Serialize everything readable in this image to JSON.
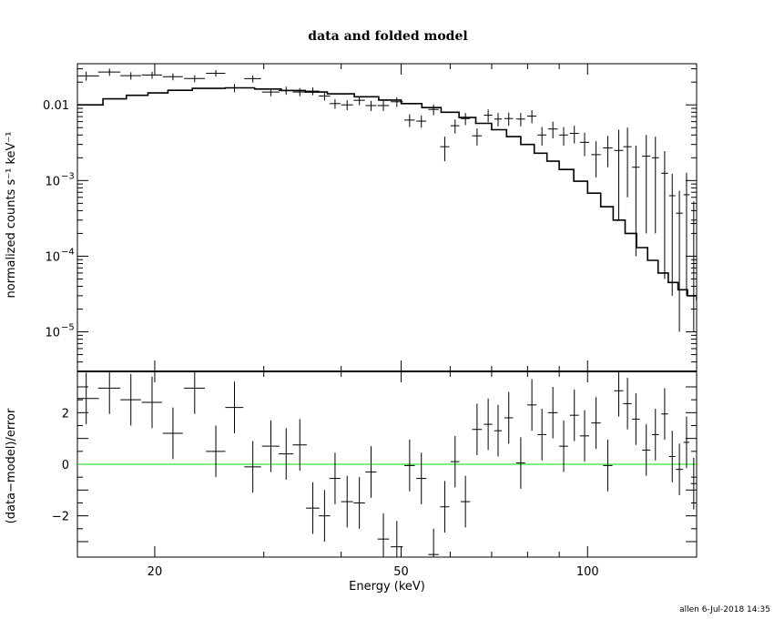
{
  "chart_data": [
    {
      "type": "scatter",
      "title": "data and folded model",
      "xlabel": "Energy (keV)",
      "ylabel": "normalized counts s⁻¹ keV⁻¹",
      "xscale": "log",
      "yscale": "log",
      "xlim": [
        15,
        150
      ],
      "ylim": [
        3e-06,
        0.035
      ],
      "x_ticks": [
        {
          "value": 20,
          "label": "20"
        },
        {
          "value": 50,
          "label": "50"
        },
        {
          "value": 100,
          "label": "100"
        }
      ],
      "y_ticks": [
        {
          "value": 0.01,
          "label": "0.01"
        },
        {
          "value": 0.001,
          "base": "10",
          "exp": "−3"
        },
        {
          "value": 0.0001,
          "base": "10",
          "exp": "−4"
        },
        {
          "value": 1e-05,
          "base": "10",
          "exp": "−5"
        }
      ],
      "grid": false,
      "series": [
        {
          "kind": "data",
          "color": "#000000",
          "points": [
            [
              15.5,
              0.0242,
              0.75,
              0.0033
            ],
            [
              16.9,
              0.0272,
              0.7,
              0.003
            ],
            [
              18.3,
              0.0243,
              0.7,
              0.0027
            ],
            [
              19.8,
              0.0248,
              0.75,
              0.0026
            ],
            [
              21.4,
              0.0236,
              0.8,
              0.0025
            ],
            [
              23.2,
              0.0223,
              0.9,
              0.0024
            ],
            [
              25.1,
              0.0262,
              0.9,
              0.0026
            ],
            [
              26.9,
              0.0168,
              0.9,
              0.0021
            ],
            [
              28.8,
              0.0222,
              0.9,
              0.0024
            ],
            [
              30.8,
              0.0148,
              1.0,
              0.0018
            ],
            [
              32.6,
              0.0155,
              0.9,
              0.0019
            ],
            [
              34.3,
              0.0148,
              0.9,
              0.0018
            ],
            [
              36.0,
              0.0152,
              0.9,
              0.0018
            ],
            [
              37.6,
              0.0131,
              0.8,
              0.0017
            ],
            [
              39.1,
              0.0104,
              0.8,
              0.0015
            ],
            [
              40.9,
              0.01,
              0.9,
              0.0015
            ],
            [
              42.8,
              0.0115,
              0.9,
              0.0016
            ],
            [
              44.7,
              0.0098,
              0.9,
              0.0015
            ],
            [
              46.8,
              0.0098,
              1.0,
              0.0015
            ],
            [
              49.2,
              0.011,
              1.1,
              0.0016
            ],
            [
              51.6,
              0.0063,
              1.0,
              0.0012
            ],
            [
              53.9,
              0.0061,
              1.0,
              0.0011
            ],
            [
              56.4,
              0.0087,
              1.1,
              0.0014
            ],
            [
              58.8,
              0.0028,
              1.0,
              0.001
            ],
            [
              61.1,
              0.0053,
              1.0,
              0.0011
            ],
            [
              63.5,
              0.0066,
              1.1,
              0.0012
            ],
            [
              66.3,
              0.0039,
              1.2,
              0.001
            ],
            [
              69.1,
              0.0073,
              1.1,
              0.0014
            ],
            [
              71.7,
              0.0065,
              1.0,
              0.0013
            ],
            [
              74.6,
              0.0066,
              1.2,
              0.0013
            ],
            [
              78.0,
              0.0065,
              1.3,
              0.0013
            ],
            [
              81.3,
              0.0071,
              1.4,
              0.0014
            ],
            [
              84.4,
              0.004,
              1.4,
              0.0011
            ],
            [
              87.9,
              0.0048,
              1.6,
              0.0012
            ],
            [
              91.5,
              0.004,
              1.5,
              0.0011
            ],
            [
              95.2,
              0.0042,
              1.6,
              0.0011
            ],
            [
              98.9,
              0.0032,
              1.7,
              0.0011
            ],
            [
              103.2,
              0.0022,
              1.8,
              0.0011
            ],
            [
              107.8,
              0.0027,
              1.9,
              0.0012
            ],
            [
              112.3,
              0.0025,
              1.9,
              0.0022
            ],
            [
              116.0,
              0.0028,
              1.8,
              0.0022
            ],
            [
              119.7,
              0.0015,
              1.7,
              0.0014
            ],
            [
              124.4,
              0.0021,
              1.9,
              0.0019
            ],
            [
              128.7,
              0.002,
              1.7,
              0.0018
            ],
            [
              133.2,
              0.00125,
              1.7,
              0.0012
            ],
            [
              137.0,
              0.00063,
              1.6,
              0.0006
            ],
            [
              140.7,
              0.00037,
              1.8,
              0.00036
            ],
            [
              144.5,
              0.00065,
              1.6,
              0.00062
            ],
            [
              148.4,
              0.00027,
              1.6,
              0.00026
            ]
          ]
        },
        {
          "kind": "model",
          "color": "#000000",
          "x": [
            15,
            16.5,
            18,
            19.5,
            21,
            23,
            26,
            29,
            32,
            35,
            38,
            42,
            46,
            50,
            54,
            58,
            62,
            66,
            70,
            74,
            78,
            82,
            86,
            90,
            95,
            100,
            105,
            110,
            115,
            120,
            125,
            130,
            135,
            140,
            145,
            150
          ],
          "y": [
            0.01,
            0.012,
            0.0134,
            0.0144,
            0.0156,
            0.0165,
            0.0168,
            0.0162,
            0.0155,
            0.0148,
            0.014,
            0.0128,
            0.0116,
            0.0104,
            0.0092,
            0.008,
            0.0068,
            0.0057,
            0.0047,
            0.0038,
            0.003,
            0.0023,
            0.0018,
            0.0014,
            0.00098,
            0.00068,
            0.00045,
            0.0003,
            0.0002,
            0.00013,
            8.8e-05,
            6e-05,
            4.5e-05,
            3.6e-05,
            3e-05,
            2.6e-05
          ]
        }
      ]
    },
    {
      "type": "scatter",
      "xlabel": "Energy (keV)",
      "ylabel": "(data−model)/error",
      "xscale": "log",
      "xlim": [
        15,
        150
      ],
      "ylim": [
        -3.6,
        3.6
      ],
      "x_ticks": [
        {
          "value": 20,
          "label": "20"
        },
        {
          "value": 50,
          "label": "50"
        },
        {
          "value": 100,
          "label": "100"
        }
      ],
      "y_ticks": [
        {
          "value": 2,
          "label": "2"
        },
        {
          "value": 0,
          "label": "0"
        },
        {
          "value": -2,
          "label": "−2"
        }
      ],
      "zero_line_color": "#00dd00",
      "series": [
        {
          "kind": "residuals",
          "color": "#000000",
          "points": [
            [
              15.5,
              2.55,
              0.75
            ],
            [
              16.9,
              2.95,
              0.7
            ],
            [
              18.3,
              2.5,
              0.7
            ],
            [
              19.8,
              2.4,
              0.75
            ],
            [
              21.4,
              1.2,
              0.8
            ],
            [
              23.2,
              2.95,
              0.9
            ],
            [
              25.1,
              0.5,
              0.9
            ],
            [
              26.9,
              2.2,
              0.9
            ],
            [
              28.8,
              -0.1,
              0.9
            ],
            [
              30.8,
              0.7,
              1.0
            ],
            [
              32.6,
              0.4,
              0.9
            ],
            [
              34.3,
              0.75,
              0.9
            ],
            [
              36.0,
              -1.7,
              0.9
            ],
            [
              37.6,
              -2.0,
              0.8
            ],
            [
              39.1,
              -0.55,
              0.8
            ],
            [
              40.9,
              -1.45,
              0.9
            ],
            [
              42.8,
              -1.5,
              0.9
            ],
            [
              44.7,
              -0.3,
              0.9
            ],
            [
              46.8,
              -2.9,
              1.0
            ],
            [
              49.2,
              -3.2,
              1.1
            ],
            [
              51.6,
              -0.05,
              1.0
            ],
            [
              53.9,
              -0.55,
              1.0
            ],
            [
              56.4,
              -3.5,
              1.1
            ],
            [
              58.8,
              -1.65,
              1.0
            ],
            [
              61.1,
              0.1,
              1.0
            ],
            [
              63.5,
              -1.45,
              1.1
            ],
            [
              66.3,
              1.35,
              1.2
            ],
            [
              69.1,
              1.55,
              1.1
            ],
            [
              71.7,
              1.3,
              1.0
            ],
            [
              74.6,
              1.8,
              1.2
            ],
            [
              78.0,
              0.05,
              1.3
            ],
            [
              81.3,
              2.3,
              1.4
            ],
            [
              84.4,
              1.15,
              1.4
            ],
            [
              87.9,
              2.0,
              1.6
            ],
            [
              91.5,
              0.7,
              1.5
            ],
            [
              95.2,
              1.9,
              1.6
            ],
            [
              98.9,
              1.1,
              1.7
            ],
            [
              103.2,
              1.6,
              1.8
            ],
            [
              107.8,
              -0.05,
              1.9
            ],
            [
              112.3,
              2.85,
              1.9
            ],
            [
              116.0,
              2.35,
              1.8
            ],
            [
              119.7,
              1.75,
              1.7
            ],
            [
              124.4,
              0.55,
              1.9
            ],
            [
              128.7,
              1.15,
              1.7
            ],
            [
              133.2,
              1.95,
              1.7
            ],
            [
              137.0,
              0.3,
              1.6
            ],
            [
              140.7,
              -0.2,
              1.8
            ],
            [
              144.5,
              0.85,
              1.6
            ],
            [
              148.4,
              -0.75,
              1.6
            ]
          ]
        }
      ]
    }
  ],
  "footer": "allen   6-Jul-2018 14:35"
}
